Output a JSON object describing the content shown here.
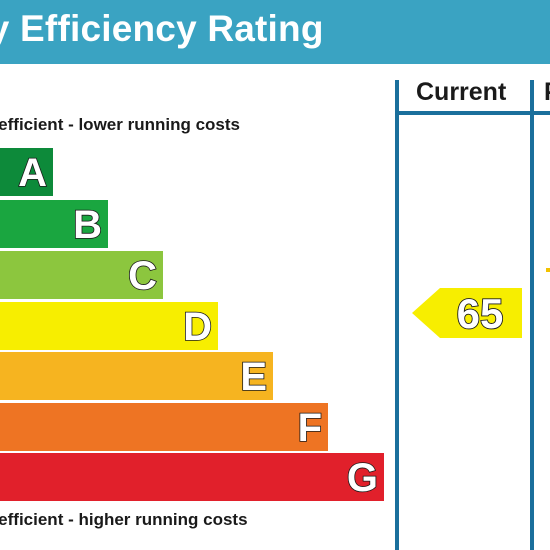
{
  "header": {
    "title": "gy Efficiency Rating",
    "background": "#3aa3c2"
  },
  "scale": {
    "top_label": "y efficient - lower running costs",
    "bottom_label": "y efficient - higher running costs",
    "bands": [
      {
        "letter": "A",
        "color": "#0d8a3a"
      },
      {
        "letter": "B",
        "color": "#1aa640"
      },
      {
        "letter": "C",
        "color": "#8cc63e"
      },
      {
        "letter": "D",
        "color": "#f7ee00"
      },
      {
        "letter": "E",
        "color": "#f6b420"
      },
      {
        "letter": "F",
        "color": "#ee7423"
      },
      {
        "letter": "G",
        "color": "#e1202b"
      }
    ]
  },
  "columns": {
    "current_label": "Current",
    "potential_label": "P"
  },
  "current": {
    "value": "65",
    "band": "D",
    "color": "#f7ee00"
  },
  "grid_color": "#1a6f9c"
}
